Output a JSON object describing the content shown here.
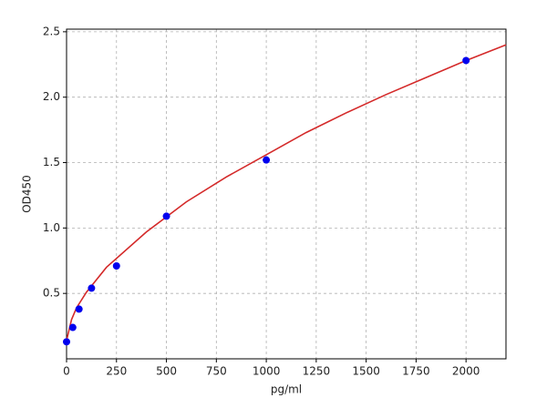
{
  "chart_data": {
    "type": "scatter",
    "x_label": "pg/ml",
    "y_label": "OD450",
    "xlim": [
      0,
      2200
    ],
    "ylim": [
      0,
      2.52
    ],
    "xticks": [
      0,
      250,
      500,
      750,
      1000,
      1250,
      1500,
      1750,
      2000
    ],
    "yticks": [
      0.5,
      {
        "value": 1.0,
        "label": "1.0"
      },
      1.5,
      {
        "value": 2.0,
        "label": "2.0"
      },
      2.5
    ],
    "grid": true,
    "series": [
      {
        "type": "line",
        "color": "#d42a2a",
        "x": [
          0,
          25,
          50,
          100,
          200,
          400,
          600,
          800,
          1000,
          1200,
          1400,
          1600,
          1800,
          2000,
          2200
        ],
        "values": [
          0.14,
          0.3,
          0.39,
          0.51,
          0.7,
          0.97,
          1.2,
          1.39,
          1.56,
          1.73,
          1.88,
          2.02,
          2.15,
          2.28,
          2.4
        ]
      },
      {
        "type": "scatter",
        "color": "#0000ee",
        "x": [
          0,
          31.25,
          62.5,
          125,
          250,
          500,
          1000,
          2000
        ],
        "values": [
          0.13,
          0.24,
          0.38,
          0.54,
          0.71,
          1.09,
          1.52,
          2.28
        ]
      }
    ]
  }
}
